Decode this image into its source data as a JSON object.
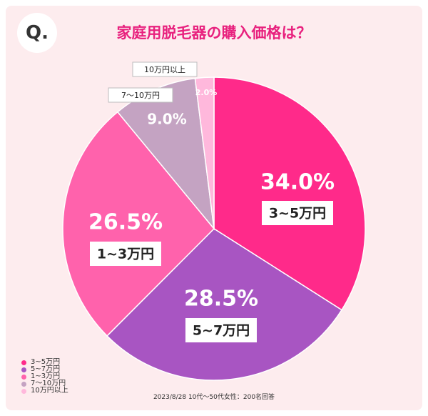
{
  "title": "家庭用脱毛器の購入価格は？",
  "badge": "Q.",
  "source_note": "2023/8/28 10代〜50代女性：200名回答",
  "chart_data": {
    "type": "pie",
    "title": "家庭用脱毛器の購入価格は？",
    "slices": [
      {
        "label": "3~5万円",
        "legend_label": "3~5万円",
        "value": 34.0,
        "value_label": "34.0%",
        "color": "#ff2a8a"
      },
      {
        "label": "5~7万円",
        "legend_label": "5~7万円",
        "value": 28.5,
        "value_label": "28.5%",
        "color": "#a855c2"
      },
      {
        "label": "1~3万円",
        "legend_label": "1~3万円",
        "value": 26.5,
        "value_label": "26.5%",
        "color": "#ff62ac"
      },
      {
        "label": "7〜10万円",
        "legend_label": "7〜10万円",
        "value": 9.0,
        "value_label": "9.0%",
        "color": "#c4a3c2"
      },
      {
        "label": "10万円以上",
        "legend_label": "10万円以上",
        "value": 2.0,
        "value_label": "2.0%",
        "color": "#ffb8dc"
      }
    ],
    "start_angle": "12 o'clock",
    "direction": "clockwise",
    "legend_position": "bottom-left"
  }
}
